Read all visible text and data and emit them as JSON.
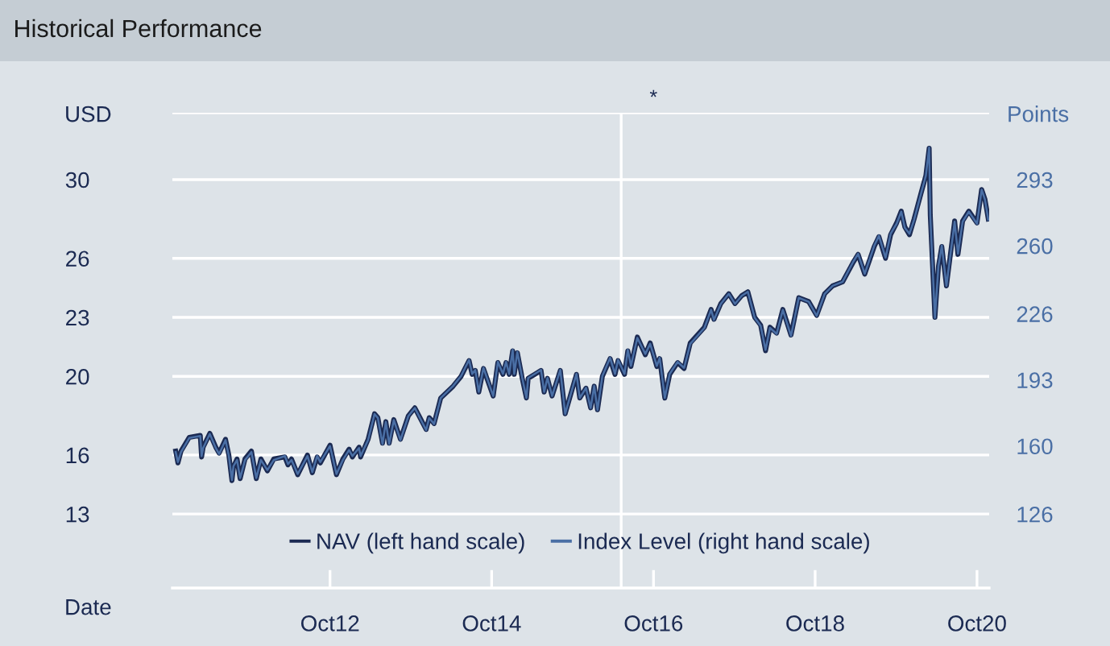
{
  "chart_data": {
    "type": "line",
    "title": "Historical Performance",
    "xlabel": "Date",
    "ylabel": "USD",
    "y2label": "Points",
    "x": [
      "2010-11-04",
      "2010-11-14",
      "2010-11-28",
      "2011-01-04",
      "2011-02-23",
      "2011-03-01",
      "2011-03-08",
      "2011-04-07",
      "2011-05-04",
      "2011-05-19",
      "2011-06-17",
      "2011-07-02",
      "2011-07-16",
      "2011-07-23",
      "2011-08-08",
      "2011-08-22",
      "2011-09-13",
      "2011-10-12",
      "2011-11-03",
      "2011-11-24",
      "2011-12-23",
      "2012-01-21",
      "2012-03-11",
      "2012-03-25",
      "2012-04-10",
      "2012-05-08",
      "2012-06-21",
      "2012-07-13",
      "2012-08-04",
      "2012-08-18",
      "2012-10-01",
      "2012-10-30",
      "2012-11-28",
      "2012-12-26",
      "2013-01-10",
      "2013-02-09",
      "2013-02-16",
      "2013-03-22",
      "2013-04-20",
      "2013-05-05",
      "2013-05-26",
      "2013-06-10",
      "2013-06-25",
      "2013-07-16",
      "2013-08-15",
      "2013-09-20",
      "2013-10-19",
      "2013-12-09",
      "2013-12-23",
      "2014-01-14",
      "2014-02-13",
      "2014-04-10",
      "2014-05-16",
      "2014-06-21",
      "2014-07-05",
      "2014-07-19",
      "2014-08-04",
      "2014-08-25",
      "2014-10-08",
      "2014-10-29",
      "2014-11-21",
      "2014-12-05",
      "2014-12-19",
      "2015-01-04",
      "2015-01-11",
      "2015-01-25",
      "2015-02-16",
      "2015-03-07",
      "2015-03-15",
      "2015-04-13",
      "2015-05-12",
      "2015-05-26",
      "2015-06-10",
      "2015-07-01",
      "2015-08-07",
      "2015-08-29",
      "2015-10-19",
      "2015-11-03",
      "2015-12-01",
      "2015-12-22",
      "2016-01-07",
      "2016-01-22",
      "2016-02-13",
      "2016-03-19",
      "2016-04-10",
      "2016-04-24",
      "2016-05-23",
      "2016-06-07",
      "2016-06-21",
      "2016-07-20",
      "2016-08-25",
      "2016-09-16",
      "2016-10-16",
      "2016-10-29",
      "2016-11-21",
      "2016-12-13",
      "2017-01-18",
      "2017-02-16",
      "2017-03-16",
      "2017-05-19",
      "2017-06-18",
      "2017-07-01",
      "2017-08-01",
      "2017-09-06",
      "2017-10-04",
      "2017-11-03",
      "2017-12-01",
      "2018-01-01",
      "2018-01-28",
      "2018-02-19",
      "2018-03-11",
      "2018-04-10",
      "2018-05-08",
      "2018-06-14",
      "2018-07-19",
      "2018-09-02",
      "2018-10-08",
      "2018-11-13",
      "2018-12-19",
      "2019-02-02",
      "2019-03-22",
      "2019-04-13",
      "2019-05-13",
      "2019-06-25",
      "2019-07-16",
      "2019-08-15",
      "2019-09-07",
      "2019-10-04",
      "2019-10-25",
      "2019-11-10",
      "2019-12-01",
      "2019-12-22",
      "2020-01-22",
      "2020-02-13",
      "2020-02-28",
      "2020-03-04",
      "2020-03-25",
      "2020-04-10",
      "2020-04-25",
      "2020-05-16",
      "2020-06-22",
      "2020-07-07",
      "2020-07-28",
      "2020-08-25",
      "2020-10-01",
      "2020-10-22",
      "2020-11-06",
      "2020-11-21"
    ],
    "series": [
      {
        "name": "Index Level (right hand scale)",
        "color": "#4a6fa5",
        "axis": "y2",
        "values": [
          157,
          152,
          157,
          164,
          165,
          155,
          159,
          166,
          159,
          156,
          163,
          155,
          143,
          150,
          153,
          144,
          153,
          157,
          144,
          153,
          148,
          153,
          155,
          151,
          153,
          146,
          155,
          147,
          155,
          152,
          160,
          146,
          153,
          158,
          155,
          159,
          155,
          163,
          176,
          174,
          161,
          172,
          161,
          173,
          163,
          175,
          179,
          168,
          174,
          171,
          184,
          190,
          195,
          203,
          196,
          198,
          187,
          199,
          185,
          202,
          196,
          202,
          196,
          208,
          196,
          207,
          194,
          184,
          194,
          196,
          198,
          187,
          194,
          185,
          198,
          176,
          196,
          184,
          189,
          179,
          190,
          178,
          195,
          204,
          196,
          203,
          196,
          208,
          200,
          214,
          206,
          211,
          200,
          204,
          184,
          196,
          202,
          199,
          211,
          219,
          228,
          223,
          231,
          236,
          231,
          235,
          237,
          224,
          220,
          208,
          219,
          216,
          228,
          215,
          234,
          232,
          225,
          236,
          240,
          242,
          252,
          256,
          246,
          260,
          265,
          254,
          266,
          271,
          277,
          269,
          266,
          273,
          286,
          295,
          309,
          275,
          224,
          250,
          260,
          240,
          272,
          256,
          272,
          277,
          271,
          288,
          283,
          273
        ]
      },
      {
        "name": "NAV (left hand scale)",
        "color": "#1b2a52",
        "values": [
          16.2,
          15.6,
          16.2,
          16.9,
          17.0,
          15.9,
          16.4,
          17.1,
          16.4,
          16.1,
          16.8,
          16.0,
          14.7,
          15.4,
          15.8,
          14.8,
          15.8,
          16.2,
          14.8,
          15.8,
          15.2,
          15.8,
          15.9,
          15.5,
          15.8,
          15.0,
          16.0,
          15.1,
          15.9,
          15.6,
          16.5,
          15.0,
          15.8,
          16.3,
          15.9,
          16.4,
          15.9,
          16.8,
          18.1,
          17.9,
          16.6,
          17.7,
          16.6,
          17.8,
          16.8,
          18.0,
          18.4,
          17.3,
          17.9,
          17.6,
          18.9,
          19.5,
          20.0,
          20.8,
          20.1,
          20.3,
          19.2,
          20.4,
          19.0,
          20.7,
          20.1,
          20.7,
          20.1,
          21.3,
          20.1,
          21.2,
          19.9,
          18.9,
          19.9,
          20.1,
          20.3,
          19.2,
          19.9,
          19.0,
          20.3,
          18.1,
          20.1,
          18.9,
          19.4,
          18.4,
          19.5,
          18.3,
          20.0,
          20.9,
          20.1,
          20.8,
          20.1,
          21.3,
          20.5,
          22.0,
          21.1,
          21.7,
          20.5,
          20.9,
          18.9,
          20.1,
          20.7,
          20.4,
          21.7,
          22.5,
          23.4,
          22.9,
          23.7,
          24.2,
          23.7,
          24.1,
          24.3,
          23.0,
          22.6,
          21.3,
          22.5,
          22.2,
          23.4,
          22.1,
          24.0,
          23.8,
          23.1,
          24.2,
          24.6,
          24.8,
          25.8,
          26.2,
          25.2,
          26.6,
          27.1,
          26.0,
          27.2,
          27.8,
          28.4,
          27.6,
          27.2,
          28.0,
          29.3,
          30.2,
          31.6,
          28.2,
          23.0,
          25.6,
          26.6,
          24.6,
          27.9,
          26.2,
          27.9,
          28.4,
          27.8,
          29.5,
          29.0,
          28.0
        ]
      }
    ],
    "xlim": [
      "2010-10-20",
      "2020-11-25"
    ],
    "xticks": [
      {
        "value": "2012-10-01",
        "label": "Oct12"
      },
      {
        "value": "2014-10-01",
        "label": "Oct14"
      },
      {
        "value": "2016-10-01",
        "label": "Oct16"
      },
      {
        "value": "2018-10-01",
        "label": "Oct18"
      },
      {
        "value": "2020-10-01",
        "label": "Oct20"
      }
    ],
    "ylim": [
      9.24,
      33.4
    ],
    "yticks": [
      13,
      16,
      20,
      23,
      26,
      30,
      {
        "value": 33.4,
        "label": null
      }
    ],
    "y2lim": [
      89.1,
      326.4
    ],
    "y2ticks": [
      126,
      160,
      193,
      226,
      260,
      293
    ],
    "ref_lines": [
      {
        "axis": "x",
        "value": "2016-05-08",
        "color": "#ffffff"
      }
    ],
    "annotations": [
      "*"
    ],
    "grid": "y",
    "legend": "bottom",
    "line_style": "solid",
    "marker": "none"
  }
}
